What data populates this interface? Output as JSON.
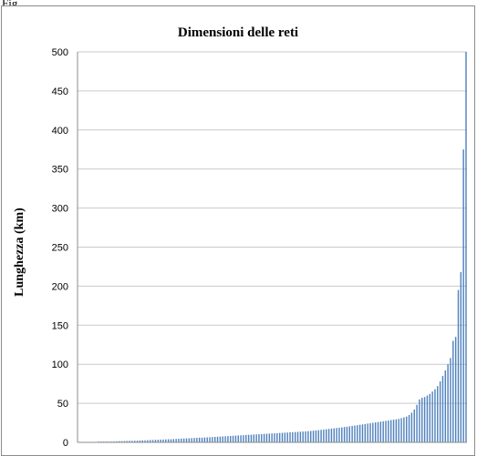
{
  "page": {
    "caption_fragment": "Fig..."
  },
  "chart_data": {
    "type": "bar",
    "title": "Dimensioni delle reti",
    "xlabel": "",
    "ylabel": "Lunghezza (km)",
    "ylim": [
      0,
      500
    ],
    "yticks": [
      0,
      50,
      100,
      150,
      200,
      250,
      300,
      350,
      400,
      450,
      500
    ],
    "grid": true,
    "legend": "none",
    "bar_color": "#4f81bd",
    "values": [
      1,
      1,
      1,
      1,
      1,
      1,
      1.2,
      1.3,
      1.5,
      1.6,
      1.7,
      1.8,
      2,
      2,
      2.1,
      2.2,
      2.3,
      2.5,
      2.6,
      2.8,
      3,
      3,
      3.2,
      3.3,
      3.5,
      3.6,
      3.8,
      4,
      4,
      4.2,
      4.4,
      4.6,
      4.8,
      5,
      5,
      5.2,
      5.4,
      5.6,
      5.8,
      6,
      6,
      6.2,
      6.4,
      6.6,
      6.8,
      7,
      7.2,
      7.4,
      7.6,
      7.8,
      8,
      8.2,
      8.4,
      8.6,
      8.8,
      9,
      9.2,
      9.4,
      9.6,
      9.8,
      10,
      10.2,
      10.4,
      10.6,
      10.8,
      11,
      11.2,
      11.4,
      11.6,
      11.8,
      12,
      12.2,
      12.4,
      12.6,
      12.8,
      13,
      13.2,
      13.4,
      13.6,
      13.8,
      14,
      14.3,
      14.6,
      15,
      15.3,
      15.6,
      16,
      16.4,
      16.8,
      17.2,
      17.6,
      18,
      18.4,
      18.8,
      19.2,
      19.6,
      20,
      20.5,
      21,
      21.5,
      22,
      22.5,
      23,
      23.5,
      24,
      24.5,
      25,
      25.5,
      26,
      26.5,
      27,
      27.5,
      28,
      28.5,
      29,
      29.5,
      30,
      31,
      32,
      33,
      35,
      38,
      42,
      48,
      55,
      57,
      58,
      60,
      62,
      65,
      68,
      72,
      78,
      85,
      92,
      100,
      108,
      130,
      135,
      195,
      218,
      375,
      500
    ]
  }
}
